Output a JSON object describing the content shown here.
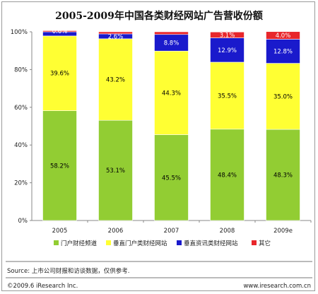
{
  "chart_data": {
    "type": "bar",
    "stacked": true,
    "title": "2005-2009年中国各类财经网站广告营收份额",
    "categories": [
      "2005",
      "2006",
      "2007",
      "2008",
      "2009e"
    ],
    "y_ticks": [
      "0%",
      "20%",
      "40%",
      "60%",
      "80%",
      "100%"
    ],
    "ylim": [
      0,
      100
    ],
    "series": [
      {
        "name": "门户财经频道",
        "color": "#92cd33",
        "values": [
          58.2,
          53.1,
          45.5,
          48.4,
          48.3
        ],
        "labels": [
          "58.2%",
          "53.1%",
          "45.5%",
          "48.4%",
          "48.3%"
        ],
        "label_color": "#000000"
      },
      {
        "name": "垂直门户类财经网站",
        "color": "#ffff33",
        "values": [
          39.6,
          43.2,
          44.3,
          35.5,
          35.0
        ],
        "labels": [
          "39.6%",
          "43.2%",
          "44.3%",
          "35.5%",
          "35.0%"
        ],
        "label_color": "#000000"
      },
      {
        "name": "垂直资讯类财经网站",
        "color": "#1a1acc",
        "values": [
          2.2,
          2.6,
          8.8,
          12.9,
          12.8
        ],
        "labels": [
          "",
          "2.6%",
          "8.8%",
          "12.9%",
          "12.8%"
        ],
        "label_color": "#ffffff"
      },
      {
        "name": "其它",
        "color": "#e8262b",
        "values": [
          0.6,
          1.1,
          1.4,
          3.1,
          4.0
        ],
        "labels": [
          "0.6%",
          "",
          "",
          "3.1%",
          "4.0%"
        ],
        "label_color": "#ffffff"
      }
    ],
    "grid": false,
    "legend_position": "bottom"
  },
  "footer": {
    "source": "Source: 上市公司财报和访谈数据，仅供参考.",
    "copyright": "©2009.6 iResearch Inc.",
    "website": "www.iresearch.com.cn"
  }
}
